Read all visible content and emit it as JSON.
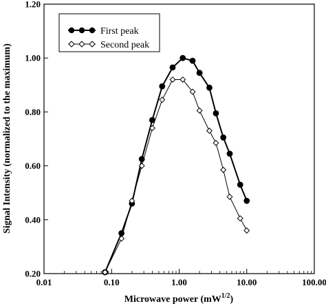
{
  "chart_data": {
    "type": "line",
    "title": "",
    "xlabel": "Microwave power (mW",
    "xlabel_sup": "1/2",
    "xlabel_end": ")",
    "ylabel": "Signal Intensity (normalized to the maximum)",
    "x_scale": "log",
    "xlim": [
      0.01,
      100
    ],
    "ylim": [
      0.2,
      1.2
    ],
    "x_ticks": [
      0.01,
      0.1,
      1,
      10,
      100
    ],
    "x_tick_labels": [
      "0.01",
      "0.10",
      "1.00",
      "10.00",
      "100.00"
    ],
    "y_ticks": [
      0.2,
      0.4,
      0.6,
      0.8,
      1.0,
      1.2
    ],
    "y_tick_labels": [
      "0.20",
      "0.40",
      "0.60",
      "0.80",
      "1.00",
      "1.20"
    ],
    "grid": false,
    "legend_position": "top-left",
    "series": [
      {
        "name": "First peak",
        "marker": "filled-circle",
        "color": "#000000",
        "x": [
          0.08,
          0.14,
          0.2,
          0.28,
          0.4,
          0.56,
          0.8,
          1.13,
          1.58,
          2.0,
          2.8,
          3.5,
          4.5,
          5.6,
          8.0,
          10.0
        ],
        "y": [
          0.205,
          0.35,
          0.46,
          0.625,
          0.77,
          0.895,
          0.965,
          1.0,
          0.99,
          0.945,
          0.89,
          0.795,
          0.705,
          0.645,
          0.53,
          0.47
        ]
      },
      {
        "name": "Second peak",
        "marker": "open-diamond",
        "color": "#000000",
        "x": [
          0.08,
          0.14,
          0.2,
          0.28,
          0.4,
          0.56,
          0.8,
          1.13,
          1.58,
          2.0,
          2.8,
          3.5,
          4.5,
          5.6,
          8.0,
          10.0
        ],
        "y": [
          0.205,
          0.33,
          0.47,
          0.6,
          0.74,
          0.845,
          0.92,
          0.92,
          0.875,
          0.805,
          0.73,
          0.685,
          0.585,
          0.485,
          0.405,
          0.36
        ]
      }
    ]
  }
}
